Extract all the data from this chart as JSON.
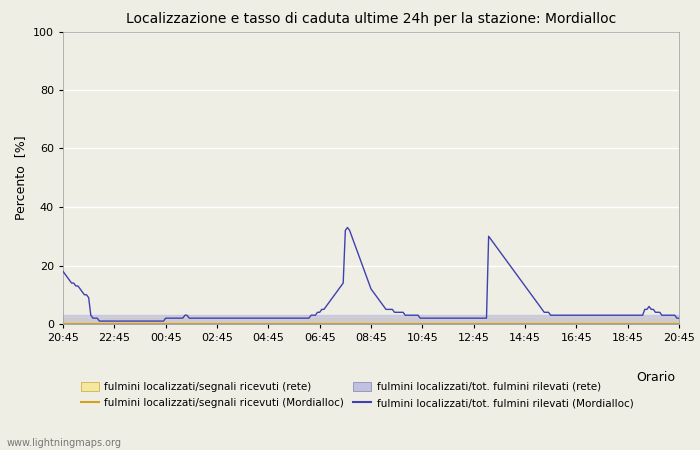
{
  "title": "Localizzazione e tasso di caduta ultime 24h per la stazione: Mordialloc",
  "xlabel_right": "Orario",
  "ylabel": "Percento  [%]",
  "ylim": [
    0,
    100
  ],
  "yticks": [
    0,
    20,
    40,
    60,
    80,
    100
  ],
  "xtick_labels": [
    "20:45",
    "22:45",
    "00:45",
    "02:45",
    "04:45",
    "06:45",
    "08:45",
    "10:45",
    "12:45",
    "14:45",
    "16:45",
    "18:45",
    "20:45"
  ],
  "background_color": "#eeeee4",
  "plot_bg_color": "#eeeee4",
  "grid_color": "#ffffff",
  "color_rete_signal_fill": "#f5e6a0",
  "color_rete_total_fill": "#c0c0e0",
  "color_mordialloc_signal_line": "#d4a020",
  "color_mordialloc_total_line": "#4040b0",
  "watermark": "www.lightningmaps.org",
  "legend": [
    "fulmini localizzati/segnali ricevuti (rete)",
    "fulmini localizzati/segnali ricevuti (Mordialloc)",
    "fulmini localizzati/tot. fulmini rilevati (rete)",
    "fulmini localizzati/tot. fulmini rilevati (Mordialloc)"
  ],
  "mordialloc_total": [
    18,
    17,
    16,
    15,
    14,
    14,
    13,
    13,
    12,
    11,
    10,
    10,
    9,
    3,
    2,
    2,
    2,
    1,
    1,
    1,
    1,
    1,
    1,
    1,
    1,
    1,
    1,
    1,
    1,
    1,
    1,
    1,
    1,
    1,
    1,
    1,
    1,
    1,
    1,
    1,
    1,
    1,
    1,
    1,
    1,
    1,
    1,
    1,
    2,
    2,
    2,
    2,
    2,
    2,
    2,
    2,
    2,
    3,
    3,
    2,
    2,
    2,
    2,
    2,
    2,
    2,
    2,
    2,
    2,
    2,
    2,
    2,
    2,
    2,
    2,
    2,
    2,
    2,
    2,
    2,
    2,
    2,
    2,
    2,
    2,
    2,
    2,
    2,
    2,
    2,
    2,
    2,
    2,
    2,
    2,
    2,
    2,
    2,
    2,
    2,
    2,
    2,
    2,
    2,
    2,
    2,
    2,
    2,
    2,
    2,
    2,
    2,
    2,
    2,
    2,
    2,
    3,
    3,
    3,
    4,
    4,
    5,
    5,
    6,
    7,
    8,
    9,
    10,
    11,
    12,
    13,
    14,
    32,
    33,
    32,
    30,
    28,
    26,
    24,
    22,
    20,
    18,
    16,
    14,
    12,
    11,
    10,
    9,
    8,
    7,
    6,
    5,
    5,
    5,
    5,
    4,
    4,
    4,
    4,
    4,
    3,
    3,
    3,
    3,
    3,
    3,
    3,
    2,
    2,
    2,
    2,
    2,
    2,
    2,
    2,
    2,
    2,
    2,
    2,
    2,
    2,
    2,
    2,
    2,
    2,
    2,
    2,
    2,
    2,
    2,
    2,
    2,
    2,
    2,
    2,
    2,
    2,
    2,
    2,
    30,
    29,
    28,
    27,
    26,
    25,
    24,
    23,
    22,
    21,
    20,
    19,
    18,
    17,
    16,
    15,
    14,
    13,
    12,
    11,
    10,
    9,
    8,
    7,
    6,
    5,
    4,
    4,
    4,
    3,
    3,
    3,
    3,
    3,
    3,
    3,
    3,
    3,
    3,
    3,
    3,
    3,
    3,
    3,
    3,
    3,
    3,
    3,
    3,
    3,
    3,
    3,
    3,
    3,
    3,
    3,
    3,
    3,
    3,
    3,
    3,
    3,
    3,
    3,
    3,
    3,
    3,
    3,
    3,
    3,
    3,
    3,
    3,
    5,
    5,
    6,
    5,
    5,
    4,
    4,
    4,
    3,
    3,
    3,
    3,
    3,
    3,
    3,
    2,
    2
  ],
  "rete_signal_val": 2,
  "rete_total_val": 3
}
